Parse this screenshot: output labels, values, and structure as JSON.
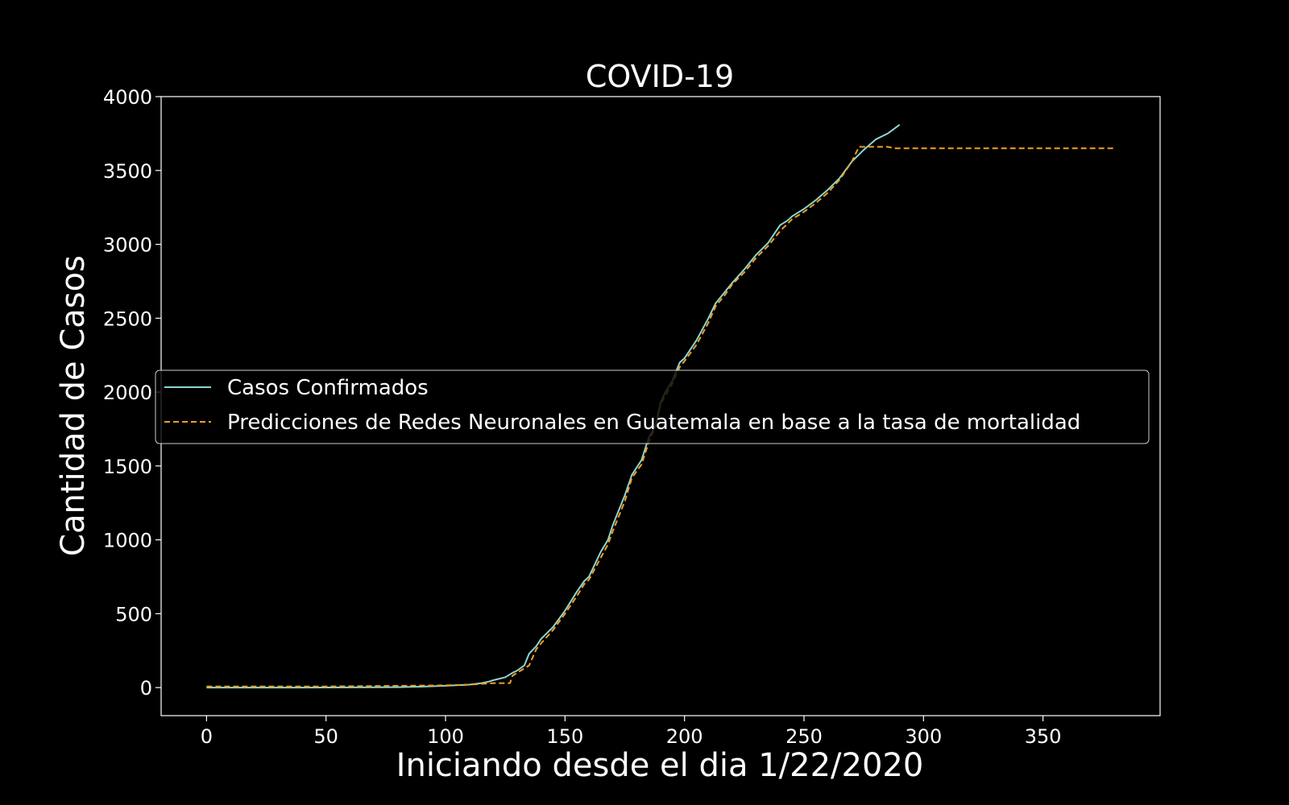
{
  "chart_data": {
    "type": "line",
    "title": "COVID-19",
    "xlabel": "Iniciando desde el dia 1/22/2020",
    "ylabel": "Cantidad de Casos",
    "xlim": [
      -19,
      399
    ],
    "ylim": [
      -190,
      4000
    ],
    "xticks": [
      0,
      50,
      100,
      150,
      200,
      250,
      300,
      350
    ],
    "yticks": [
      0,
      500,
      1000,
      1500,
      2000,
      2500,
      3000,
      3500,
      4000
    ],
    "grid": false,
    "legend_position": "center-left",
    "background": "#000000",
    "series": [
      {
        "name": "Casos Confirmados",
        "color": "#8ed6d2",
        "style": "solid",
        "x": [
          0,
          20,
          40,
          60,
          80,
          90,
          100,
          110,
          115,
          118,
          120,
          125,
          128,
          130,
          133,
          135,
          138,
          140,
          145,
          150,
          155,
          158,
          160,
          165,
          168,
          170,
          175,
          178,
          182,
          185,
          188,
          190,
          192,
          195,
          198,
          200,
          205,
          210,
          213,
          217,
          220,
          225,
          230,
          235,
          240,
          243,
          245,
          250,
          255,
          260,
          265,
          270,
          275,
          280,
          285,
          290
        ],
        "y": [
          0,
          0,
          0,
          1,
          3,
          6,
          12,
          20,
          30,
          40,
          50,
          70,
          100,
          115,
          150,
          230,
          280,
          330,
          410,
          520,
          650,
          720,
          750,
          920,
          1000,
          1100,
          1300,
          1440,
          1540,
          1690,
          1780,
          1930,
          2000,
          2080,
          2200,
          2230,
          2350,
          2500,
          2600,
          2680,
          2740,
          2830,
          2930,
          3010,
          3130,
          3160,
          3190,
          3240,
          3300,
          3370,
          3450,
          3560,
          3640,
          3710,
          3750,
          3810
        ]
      },
      {
        "name": "Predicciones de Redes Neuronales en Guatemala en base a la tasa de mortalidad",
        "color": "#f0a020",
        "style": "dashed",
        "x": [
          0,
          50,
          100,
          110,
          120,
          127,
          128,
          132,
          135,
          138,
          140,
          145,
          150,
          155,
          158,
          160,
          165,
          168,
          170,
          175,
          178,
          182,
          185,
          188,
          190,
          195,
          198,
          200,
          205,
          210,
          213,
          217,
          220,
          225,
          230,
          235,
          240,
          245,
          250,
          255,
          260,
          265,
          270,
          273,
          285,
          288,
          300,
          350,
          380
        ],
        "y": [
          8,
          8,
          15,
          20,
          30,
          30,
          80,
          120,
          150,
          260,
          300,
          390,
          500,
          620,
          700,
          730,
          880,
          970,
          1060,
          1260,
          1420,
          1510,
          1660,
          1770,
          1920,
          2060,
          2170,
          2210,
          2320,
          2470,
          2580,
          2660,
          2730,
          2810,
          2910,
          2990,
          3090,
          3170,
          3220,
          3280,
          3350,
          3440,
          3560,
          3660,
          3660,
          3650,
          3650,
          3650,
          3650
        ]
      }
    ]
  }
}
